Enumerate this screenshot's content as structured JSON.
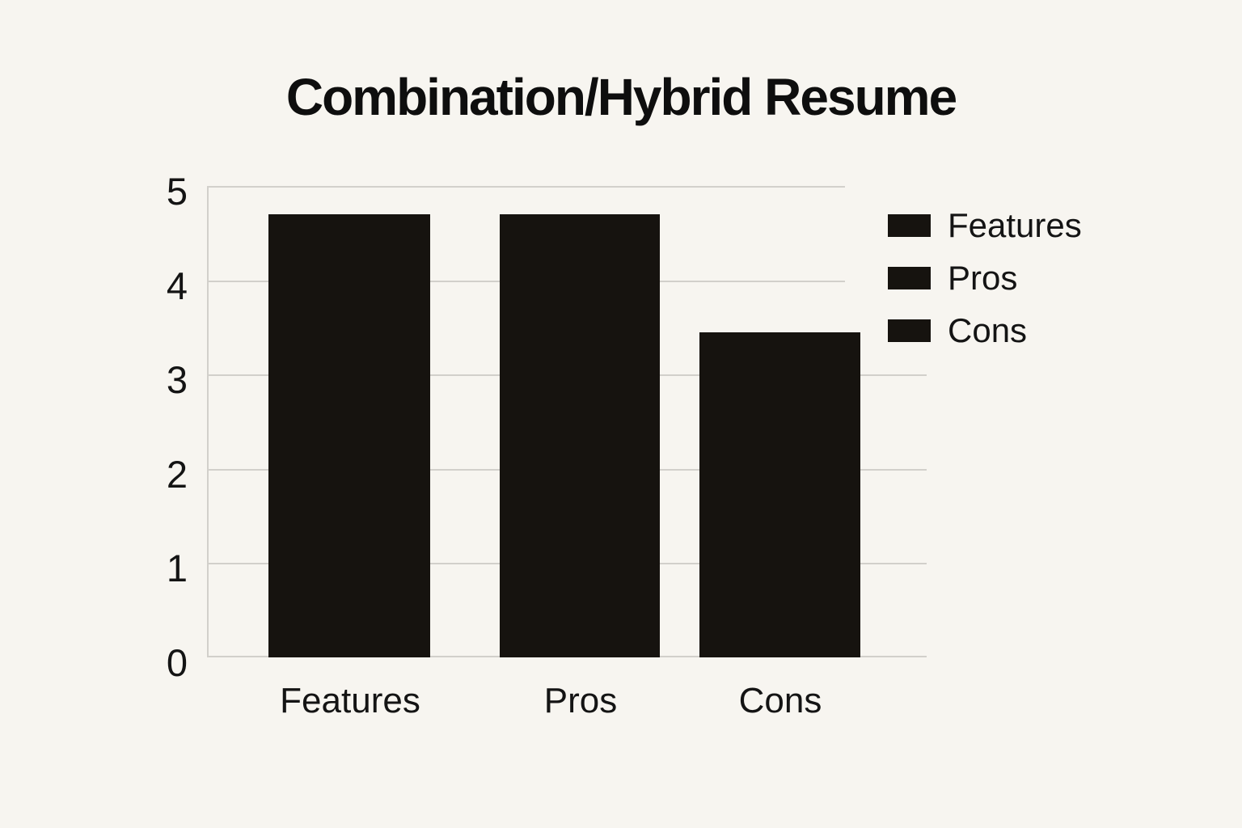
{
  "colors": {
    "background": "#f7f5f0",
    "bar": "#16130f",
    "gridline": "#d2d0cb",
    "text": "#141414"
  },
  "chart_data": {
    "type": "bar",
    "title": "Combination/Hybrid Resume",
    "categories": [
      "Features",
      "Pros",
      "Cons"
    ],
    "values": [
      4.7,
      4.7,
      3.45
    ],
    "xlabel": "",
    "ylabel": "",
    "ylim": [
      0,
      5
    ],
    "yticks": [
      0,
      1,
      2,
      3,
      4,
      5
    ],
    "grid": true,
    "legend": [
      "Features",
      "Pros",
      "Cons"
    ],
    "legend_position": "right"
  }
}
